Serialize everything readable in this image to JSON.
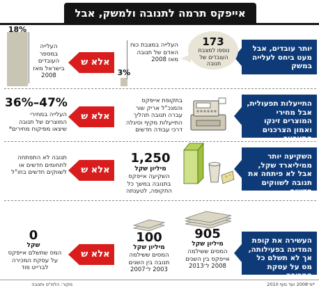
{
  "title": "אייפקס תרמה לתנובה ולמשק, אבל",
  "not_label": "אלא ש",
  "rows": [
    {
      "claim": "יותר עובדים, אבל מעט ביחס לעלייה במשק",
      "bubble_number": "173",
      "bubble_text": "נוספו למצבת העובדים של תנובה",
      "mid_pct": "3%",
      "mid_text": "העלייה במצבת כוח האדם של תנובה מאז 2008",
      "right_pct": "18%",
      "right_text": "העלייה במספר העובדים בישראל מאז 2008"
    },
    {
      "claim": "התייעלות תפעולית, אבל מחירי המוצרים זינקו ואמון הצרכנים התערער",
      "mid_text": "בתקופת אייפקס והמנכ\"ל אריק שור עברה תנובה תהליך התייעלות מקיף וסיגלה דרכי עבודה חדשים",
      "right_number": "36%–47%",
      "right_text": "העלייה במחירי המוצרים של תנובה שיצאו מפיקוח מחירים*"
    },
    {
      "claim": "השקיעה יותר ממיליארד שקל, אבל לא פיתחה את תנובה לשווקים חדשים",
      "mid_number": "1,250",
      "mid_unit": "מיליון שקל",
      "mid_text": "השקיעה אייפקס בתנובה במשך כל התקופה, לטענתה",
      "right_text": "תנובה לא התפתחה לתחומים חדשים או לשווקים חדשים בחו\"ל"
    },
    {
      "claim": "העשירה את קופת המדינה בפעילותה, אך לא תשלם כל מס על עסקת המכירה",
      "left_number": "905",
      "left_unit": "מיליון שקל",
      "left_text": "המסים ששילמה אייפקס בין השנים 2008 ל־2013",
      "mid_number": "100",
      "mid_unit": "מיליון שקל",
      "mid_text": "המסים ששילמה תנובה בין השנים 2003 ל־2007",
      "right_number": "0",
      "right_unit": "שקל",
      "right_text": "המס שתשלם אייפקס על עסקת המכירה לברייט פוד"
    }
  ],
  "footer": {
    "source": "מקור: הלמ\"ס ותנובה",
    "note": "*מ־2008 ועד סוף 2010"
  },
  "colors": {
    "title_bg": "#141414",
    "panel_bg": "#0e3b78",
    "accent_red": "#d91d1d",
    "bar_gray": "#c9c5b5"
  }
}
